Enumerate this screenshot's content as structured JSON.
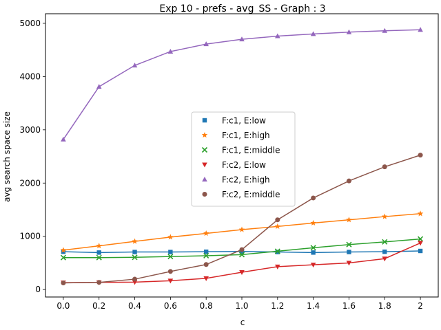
{
  "chart_data": {
    "type": "line",
    "title": "Exp 10 - prefs - avg_SS - Graph : 3",
    "xlabel": "c",
    "ylabel": "avg search space size",
    "x": [
      0.0,
      0.2,
      0.4,
      0.6,
      0.8,
      1.0,
      1.2,
      1.4,
      1.6,
      1.8,
      2.0
    ],
    "x_tick_labels": [
      "0.0",
      "0.2",
      "0.4",
      "0.6",
      "0.8",
      "1.0",
      "1.2",
      "1.4",
      "1.6",
      "1.8",
      "2"
    ],
    "y_ticks": [
      0,
      1000,
      2000,
      3000,
      4000,
      5000
    ],
    "y_tick_labels": [
      "0",
      "1000",
      "2000",
      "3000",
      "4000",
      "5000"
    ],
    "xlim": [
      -0.1,
      2.1
    ],
    "ylim": [
      -140,
      5180
    ],
    "grid": false,
    "legend_position": "center",
    "series": [
      {
        "name": "F:c1, E:low",
        "color": "#1f77b4",
        "marker": "square",
        "values": [
          710,
          695,
          705,
          705,
          710,
          715,
          705,
          695,
          705,
          710,
          725
        ]
      },
      {
        "name": "F:c1, E:high",
        "color": "#ff7f0e",
        "marker": "star",
        "values": [
          740,
          820,
          905,
          985,
          1055,
          1125,
          1185,
          1250,
          1310,
          1370,
          1425
        ]
      },
      {
        "name": "F:c1, E:middle",
        "color": "#2ca02c",
        "marker": "x",
        "values": [
          600,
          600,
          605,
          620,
          635,
          655,
          720,
          785,
          845,
          895,
          950
        ]
      },
      {
        "name": "F:c2, E:low",
        "color": "#d62728",
        "marker": "triangle-down",
        "values": [
          130,
          135,
          140,
          165,
          210,
          325,
          430,
          465,
          500,
          580,
          875
        ]
      },
      {
        "name": "F:c2, E:high",
        "color": "#9467bd",
        "marker": "triangle-up",
        "values": [
          2820,
          3810,
          4210,
          4470,
          4610,
          4700,
          4760,
          4800,
          4835,
          4860,
          4880
        ]
      },
      {
        "name": "F:c2, E:middle",
        "color": "#8c564b",
        "marker": "circle",
        "values": [
          125,
          135,
          195,
          340,
          470,
          750,
          1310,
          1720,
          2040,
          2305,
          2525
        ]
      }
    ]
  }
}
